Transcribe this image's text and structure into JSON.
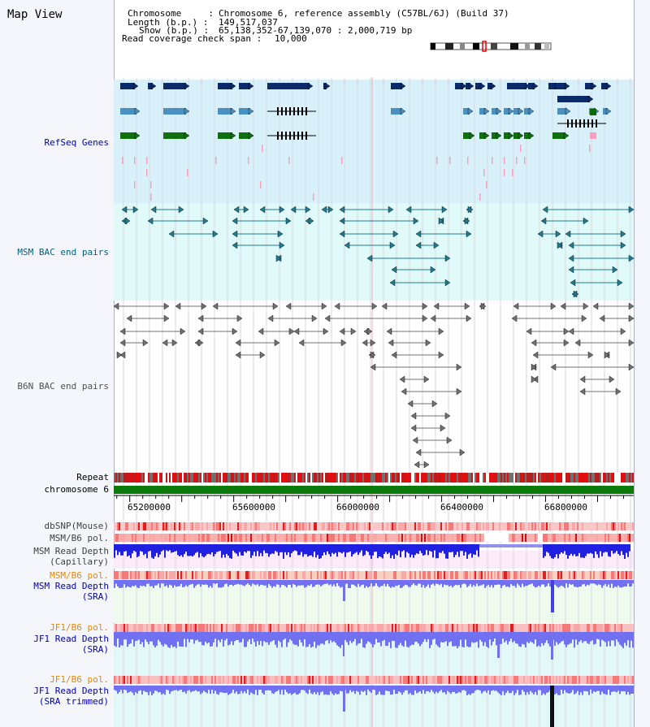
{
  "title": "Map View",
  "info": {
    "chromosome_key": "Chromosome     : ",
    "chromosome": "Chromosome 6, reference assembly (C57BL/6J) (Build 37)",
    "length_key": "Length (b.p.) : ",
    "length": "149,517,037",
    "show_key": "Show (b.p.) : ",
    "show": "65,138,352-67,139,070 : 2,000,719 bp",
    "coverage_key": "Read coverage check span : ",
    "coverage": "10,000"
  },
  "tracks": {
    "refseq": "RefSeq Genes",
    "msm_bac": "MSM BAC end pairs",
    "b6n_bac": "B6N BAC end pairs",
    "repeat": "Repeat",
    "chromosome": "chromosome 6",
    "dbsnp": "dbSNP(Mouse)",
    "msm_pol1": "MSM/B6 pol.",
    "msm_depth_cap_1": "MSM Read Depth",
    "msm_depth_cap_2": "(Capillary)",
    "msm_pol2": "MSM/B6 pol.",
    "msm_depth_sra_1": "MSM Read Depth",
    "msm_depth_sra_2": "(SRA)",
    "jf1_pol1": "JF1/B6 pol.",
    "jf1_depth_sra_1": "JF1 Read Depth",
    "jf1_depth_sra_2": "(SRA)",
    "jf1_pol2": "JF1/B6 pol.",
    "jf1_depth_trim_1": "JF1 Read Depth",
    "jf1_depth_trim_2": "(SRA trimmed)"
  },
  "axis": {
    "ticks": [
      "65200000",
      "65600000",
      "66000000",
      "66400000",
      "66800000"
    ],
    "tick_values": [
      65200000,
      65600000,
      66000000,
      66400000,
      66800000
    ],
    "range": [
      65138352,
      67139070
    ]
  },
  "colors": {
    "refseq_bg": "#d8f0fa",
    "msm_bg": "#e0fafa",
    "dark_blue": "#0a2a6a",
    "light_blue": "#4a90c0",
    "green": "#107010",
    "teal": "#207a90",
    "gray": "#707070",
    "pink": "#f6a0c0",
    "chrom_green": "#0a7a0a",
    "depth_blue": "#2020e0",
    "sra_blue": "#7070f0"
  }
}
